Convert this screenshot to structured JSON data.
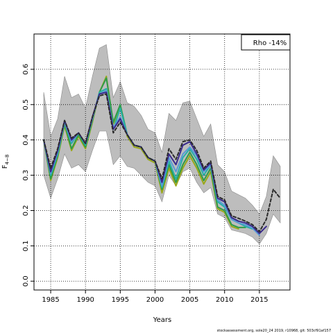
{
  "chart_data": {
    "type": "line",
    "title": "",
    "xlabel": "Years",
    "ylabel": "F4-8",
    "ylabel_main": "F",
    "ylabel_sub": "4−8",
    "xlim": [
      1982.6,
      2019.4
    ],
    "ylim": [
      -0.025,
      0.7
    ],
    "xticks": [
      1985,
      1990,
      1995,
      2000,
      2005,
      2010,
      2015
    ],
    "yticks": [
      0.0,
      0.1,
      0.2,
      0.3,
      0.4,
      0.5,
      0.6
    ],
    "ytick_labels": [
      "0.0",
      "0.1",
      "0.2",
      "0.3",
      "0.4",
      "0.5",
      "0.6"
    ],
    "grid": true,
    "legend": {
      "position": "top-right",
      "text": "Rho -14%"
    },
    "footer": "stockassessment.org, sole20_24 2019, r10968, git: 503cf91af157",
    "band": {
      "x": [
        1984,
        1985,
        1986,
        1987,
        1988,
        1989,
        1990,
        1991,
        1992,
        1993,
        1994,
        1995,
        1996,
        1997,
        1998,
        1999,
        2000,
        2001,
        2002,
        2003,
        2004,
        2005,
        2006,
        2007,
        2008,
        2009,
        2010,
        2011,
        2012,
        2013,
        2014,
        2015,
        2016,
        2017,
        2018
      ],
      "upper": [
        0.535,
        0.41,
        0.46,
        0.58,
        0.52,
        0.53,
        0.49,
        0.58,
        0.66,
        0.67,
        0.52,
        0.565,
        0.505,
        0.495,
        0.47,
        0.43,
        0.42,
        0.365,
        0.475,
        0.455,
        0.505,
        0.51,
        0.46,
        0.41,
        0.445,
        0.33,
        0.31,
        0.255,
        0.245,
        0.235,
        0.215,
        0.19,
        0.24,
        0.355,
        0.325
      ],
      "lower": [
        0.3,
        0.235,
        0.29,
        0.36,
        0.32,
        0.33,
        0.31,
        0.37,
        0.425,
        0.425,
        0.33,
        0.355,
        0.325,
        0.32,
        0.3,
        0.28,
        0.27,
        0.225,
        0.3,
        0.27,
        0.31,
        0.32,
        0.28,
        0.25,
        0.265,
        0.19,
        0.18,
        0.145,
        0.14,
        0.135,
        0.125,
        0.105,
        0.135,
        0.19,
        0.165
      ]
    },
    "series": [
      {
        "color": "#9aa81a",
        "width": 2,
        "x": [
          1984,
          1985,
          1986,
          1987,
          1988,
          1989,
          1990,
          1991,
          1992,
          1993,
          1994,
          1995,
          1996,
          1997,
          1998,
          1999,
          2000,
          2001,
          2002,
          2003,
          2004,
          2005,
          2006,
          2007,
          2008,
          2009,
          2010,
          2011,
          2012
        ],
        "y": [
          0.4,
          0.285,
          0.35,
          0.44,
          0.37,
          0.41,
          0.375,
          0.45,
          0.535,
          0.58,
          0.445,
          0.495,
          0.41,
          0.38,
          0.375,
          0.345,
          0.335,
          0.25,
          0.32,
          0.27,
          0.32,
          0.355,
          0.32,
          0.275,
          0.31,
          0.205,
          0.195,
          0.155,
          0.148
        ]
      },
      {
        "color": "#2e9b4a",
        "width": 2,
        "x": [
          1984,
          1985,
          1986,
          1987,
          1988,
          1989,
          1990,
          1991,
          1992,
          1993,
          1994,
          1995,
          1996,
          1997,
          1998,
          1999,
          2000,
          2001,
          2002,
          2003,
          2004,
          2005,
          2006,
          2007,
          2008,
          2009,
          2010,
          2011,
          2012,
          2013
        ],
        "y": [
          0.4,
          0.29,
          0.355,
          0.445,
          0.375,
          0.415,
          0.38,
          0.455,
          0.535,
          0.575,
          0.45,
          0.5,
          0.415,
          0.385,
          0.38,
          0.35,
          0.34,
          0.26,
          0.33,
          0.28,
          0.33,
          0.365,
          0.33,
          0.285,
          0.32,
          0.21,
          0.2,
          0.16,
          0.152,
          0.152
        ]
      },
      {
        "color": "#25b0a8",
        "width": 2,
        "x": [
          1984,
          1985,
          1986,
          1987,
          1988,
          1989,
          1990,
          1991,
          1992,
          1993,
          1994,
          1995,
          1996,
          1997,
          1998,
          1999,
          2000,
          2001,
          2002,
          2003,
          2004,
          2005,
          2006,
          2007,
          2008,
          2009,
          2010,
          2011,
          2012,
          2013,
          2014
        ],
        "y": [
          0.4,
          0.3,
          0.36,
          0.45,
          0.39,
          0.42,
          0.385,
          0.46,
          0.535,
          0.545,
          0.43,
          0.49,
          0.415,
          0.385,
          0.38,
          0.35,
          0.34,
          0.265,
          0.34,
          0.29,
          0.35,
          0.375,
          0.345,
          0.3,
          0.33,
          0.225,
          0.21,
          0.175,
          0.165,
          0.155,
          0.148
        ]
      },
      {
        "color": "#5a9ad6",
        "width": 2,
        "x": [
          1984,
          1985,
          1986,
          1987,
          1988,
          1989,
          1990,
          1991,
          1992,
          1993,
          1994,
          1995,
          1996,
          1997,
          1998,
          1999,
          2000,
          2001,
          2002,
          2003,
          2004,
          2005,
          2006,
          2007,
          2008,
          2009,
          2010,
          2011,
          2012,
          2013,
          2014,
          2015
        ],
        "y": [
          0.4,
          0.305,
          0.365,
          0.45,
          0.395,
          0.42,
          0.39,
          0.46,
          0.53,
          0.54,
          0.435,
          0.465,
          0.415,
          0.385,
          0.38,
          0.35,
          0.34,
          0.27,
          0.35,
          0.31,
          0.36,
          0.38,
          0.355,
          0.31,
          0.33,
          0.23,
          0.215,
          0.175,
          0.165,
          0.16,
          0.15,
          0.13
        ]
      },
      {
        "color": "#3a2a8c",
        "width": 2,
        "x": [
          1984,
          1985,
          1986,
          1987,
          1988,
          1989,
          1990,
          1991,
          1992,
          1993,
          1994,
          1995,
          1996,
          1997,
          1998,
          1999,
          2000,
          2001,
          2002,
          2003,
          2004,
          2005,
          2006,
          2007,
          2008,
          2009,
          2010,
          2011,
          2012,
          2013,
          2014,
          2015,
          2016
        ],
        "y": [
          0.4,
          0.31,
          0.37,
          0.455,
          0.4,
          0.42,
          0.39,
          0.465,
          0.53,
          0.535,
          0.43,
          0.46,
          0.415,
          0.385,
          0.38,
          0.35,
          0.34,
          0.28,
          0.36,
          0.33,
          0.385,
          0.395,
          0.36,
          0.315,
          0.335,
          0.235,
          0.225,
          0.18,
          0.17,
          0.165,
          0.155,
          0.135,
          0.155
        ]
      },
      {
        "color": "#2b2b2b",
        "width": 2,
        "dash": "4,3",
        "x": [
          1984,
          1985,
          1986,
          1987,
          1988,
          1989,
          1990,
          1991,
          1992,
          1993,
          1994,
          1995,
          1996,
          1997,
          1998,
          1999,
          2000,
          2001,
          2002,
          2003,
          2004,
          2005,
          2006,
          2007,
          2008,
          2009,
          2010,
          2011,
          2012,
          2013,
          2014,
          2015,
          2016,
          2017,
          2018
        ],
        "y": [
          0.4,
          0.32,
          0.375,
          0.455,
          0.405,
          0.42,
          0.39,
          0.465,
          0.525,
          0.53,
          0.42,
          0.45,
          0.415,
          0.385,
          0.38,
          0.35,
          0.34,
          0.29,
          0.375,
          0.345,
          0.395,
          0.4,
          0.37,
          0.32,
          0.34,
          0.24,
          0.23,
          0.185,
          0.178,
          0.17,
          0.16,
          0.14,
          0.175,
          0.26,
          0.235
        ]
      }
    ]
  }
}
